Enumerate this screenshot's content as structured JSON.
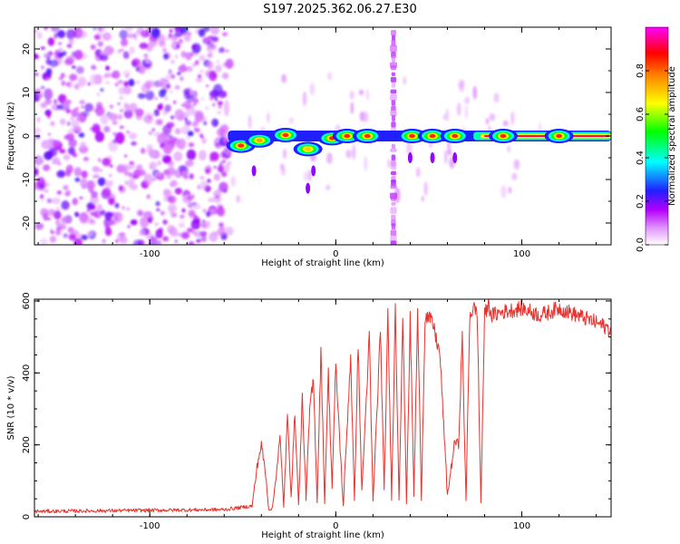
{
  "title": "S197.2025.362.06.27.E30",
  "chart_data": [
    {
      "type": "heatmap",
      "xlabel": "Height of straight line (km)",
      "ylabel": "Frequency (Hz)",
      "xlim": [
        -162,
        148
      ],
      "ylim": [
        -25,
        25
      ],
      "xticks": [
        -100,
        0,
        100
      ],
      "yticks": [
        -20,
        -10,
        0,
        10,
        20
      ],
      "colorbar": {
        "label": "Normalized spectral amplitude",
        "range": [
          0.0,
          1.0
        ],
        "ticks": [
          0.0,
          0.2,
          0.4,
          0.6,
          0.8
        ],
        "colors": [
          "#ffffff",
          "#b300ff",
          "#0000ff",
          "#00ffff",
          "#00ff00",
          "#ffff00",
          "#ff0000",
          "#ff00ff"
        ]
      },
      "noise_region_km": [
        -162,
        -60
      ],
      "signal_line_frequency_hz": 0,
      "vertical_stripe_km": 31,
      "blobs": [
        {
          "x": -51,
          "y": -2.2,
          "amp": 0.85
        },
        {
          "x": -41,
          "y": -1.0,
          "amp": 0.75
        },
        {
          "x": -27,
          "y": 0.2,
          "amp": 0.9
        },
        {
          "x": -15,
          "y": -3.0,
          "amp": 0.7
        },
        {
          "x": -2,
          "y": -0.5,
          "amp": 0.85
        },
        {
          "x": 6,
          "y": 0.0,
          "amp": 0.9
        },
        {
          "x": 17,
          "y": 0.0,
          "amp": 0.9
        },
        {
          "x": 41,
          "y": 0.0,
          "amp": 0.95
        },
        {
          "x": 52,
          "y": 0.0,
          "amp": 0.9
        },
        {
          "x": 64,
          "y": 0.0,
          "amp": 0.9
        },
        {
          "x": 90,
          "y": 0.0,
          "amp": 1.0
        },
        {
          "x": 120,
          "y": 0.0,
          "amp": 1.0
        }
      ]
    },
    {
      "type": "line",
      "xlabel": "Height of straight line (km)",
      "ylabel": "SNR (10 * v/v)",
      "xlim": [
        -162,
        148
      ],
      "ylim": [
        0,
        605
      ],
      "xticks": [
        -100,
        0,
        100
      ],
      "yticks": [
        0,
        200,
        400,
        600
      ],
      "color": "#e8322d",
      "series": [
        {
          "name": "SNR",
          "x": [
            -162,
            -60,
            -45,
            -42,
            -40,
            -38,
            -36,
            -34,
            -30,
            -28,
            -26,
            -24,
            -22,
            -20,
            -18,
            -16,
            -14,
            -12,
            -10,
            -8,
            -6,
            -4,
            -2,
            0,
            4,
            8,
            10,
            12,
            14,
            18,
            20,
            24,
            26,
            28,
            30,
            32,
            34,
            36,
            38,
            40,
            42,
            44,
            46,
            48,
            52,
            56,
            60,
            64,
            66,
            68,
            70,
            72,
            74,
            76,
            78,
            80,
            82,
            84,
            90,
            100,
            110,
            120,
            130,
            140,
            148
          ],
          "y": [
            15,
            20,
            30,
            150,
            200,
            130,
            20,
            25,
            220,
            30,
            280,
            60,
            290,
            30,
            330,
            50,
            300,
            380,
            40,
            470,
            40,
            400,
            80,
            420,
            30,
            450,
            40,
            480,
            70,
            500,
            40,
            520,
            70,
            560,
            50,
            580,
            50,
            560,
            40,
            550,
            60,
            570,
            50,
            560,
            540,
            450,
            60,
            210,
            200,
            500,
            40,
            560,
            580,
            570,
            40,
            560,
            590,
            560,
            570,
            580,
            560,
            580,
            560,
            540,
            520
          ]
        }
      ]
    }
  ]
}
